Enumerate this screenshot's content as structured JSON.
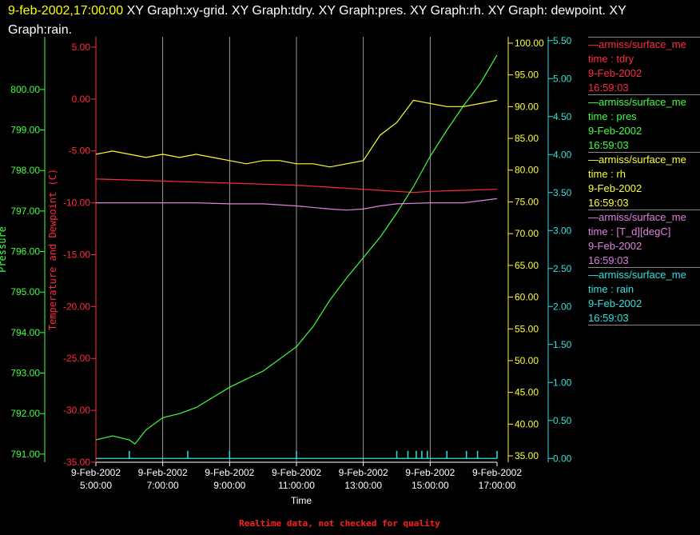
{
  "header": {
    "timestamp": "9-feb-2002,17:00:00",
    "graphs": " XY Graph:xy-grid.  XY Graph:tdry.  XY Graph:pres.  XY Graph:rh.  XY Graph: dewpoint.  XY Graph:rain."
  },
  "colors": {
    "tdry": "#ff2a40",
    "pres": "#40ff40",
    "rh": "#ffff30",
    "dewpoint": "#e080e0",
    "rain": "#30e0e0",
    "grid": "#e0e0e0",
    "axis_text": "#ffffff"
  },
  "chart_data": {
    "type": "line",
    "xlabel": "Time",
    "x_ticks": [
      {
        "date": "9-Feb-2002",
        "time": "5:00:00"
      },
      {
        "date": "9-Feb-2002",
        "time": "7:00:00"
      },
      {
        "date": "9-Feb-2002",
        "time": "9:00:00"
      },
      {
        "date": "9-Feb-2002",
        "time": "11:00:00"
      },
      {
        "date": "9-Feb-2002",
        "time": "13:00:00"
      },
      {
        "date": "9-Feb-2002",
        "time": "15:00:00"
      },
      {
        "date": "9-Feb-2002",
        "time": "17:00:00"
      }
    ],
    "xlim": [
      "9-Feb-2002 5:00:00",
      "9-Feb-2002 17:00:00"
    ],
    "grid": true,
    "axes": {
      "pressure": {
        "label": "Pressure",
        "ylim": [
          790.8,
          801.3
        ],
        "ticks": [
          "791.00",
          "792.00",
          "793.00",
          "794.00",
          "795.00",
          "796.00",
          "797.00",
          "798.00",
          "799.00",
          "800.00"
        ]
      },
      "temperature": {
        "label": "Temperature and Dewpoint (C)",
        "ylim": [
          -35,
          6
        ],
        "ticks": [
          "-35.00",
          "-30.00",
          "-25.00",
          "-20.00",
          "-15.00",
          "-10.00",
          "-5.00",
          "0.00",
          "5.00"
        ]
      },
      "rh": {
        "label": "",
        "ylim": [
          34,
          101
        ],
        "ticks": [
          "35.00",
          "40.00",
          "45.00",
          "50.00",
          "55.00",
          "60.00",
          "65.00",
          "70.00",
          "75.00",
          "80.00",
          "85.00",
          "90.00",
          "95.00",
          "100.00"
        ]
      },
      "rain": {
        "label": "",
        "ylim": [
          -0.05,
          5.55
        ],
        "ticks": [
          "0.00",
          "0.50",
          "1.00",
          "1.50",
          "2.00",
          "2.50",
          "3.00",
          "3.50",
          "4.00",
          "4.50",
          "5.00",
          "5.50"
        ]
      }
    },
    "series": [
      {
        "name": "tdry",
        "axis": "temperature",
        "x": [
          "05:00",
          "06:00",
          "07:00",
          "08:00",
          "09:00",
          "10:00",
          "11:00",
          "12:00",
          "13:00",
          "13:30",
          "14:00",
          "14:30",
          "15:00",
          "16:00",
          "17:00"
        ],
        "y": [
          -7.7,
          -7.8,
          -7.9,
          -8.0,
          -8.1,
          -8.2,
          -8.3,
          -8.5,
          -8.7,
          -8.8,
          -8.9,
          -9.0,
          -8.9,
          -8.8,
          -8.7
        ]
      },
      {
        "name": "pres",
        "axis": "pressure",
        "x": [
          "05:00",
          "05:30",
          "06:00",
          "06:10",
          "06:30",
          "07:00",
          "07:30",
          "08:00",
          "08:30",
          "09:00",
          "09:30",
          "10:00",
          "10:30",
          "11:00",
          "11:30",
          "12:00",
          "12:30",
          "13:00",
          "13:30",
          "14:00",
          "14:30",
          "15:00",
          "15:30",
          "16:00",
          "16:30",
          "17:00"
        ],
        "y": [
          791.35,
          791.45,
          791.35,
          791.25,
          791.6,
          791.9,
          792.0,
          792.15,
          792.4,
          792.65,
          792.85,
          793.05,
          793.35,
          793.65,
          794.15,
          794.8,
          795.35,
          795.85,
          796.35,
          796.95,
          797.6,
          798.35,
          799.0,
          799.6,
          800.15,
          800.85
        ]
      },
      {
        "name": "rh",
        "axis": "rh",
        "x": [
          "05:00",
          "05:30",
          "06:00",
          "06:30",
          "07:00",
          "07:30",
          "08:00",
          "08:30",
          "09:00",
          "09:30",
          "10:00",
          "10:30",
          "11:00",
          "11:30",
          "12:00",
          "12:30",
          "13:00",
          "13:30",
          "14:00",
          "14:30",
          "15:00",
          "15:30",
          "16:00",
          "16:30",
          "17:00"
        ],
        "y": [
          82.5,
          83.0,
          82.5,
          82.0,
          82.5,
          82.0,
          82.5,
          82.0,
          81.5,
          81.0,
          81.5,
          81.5,
          81.0,
          81.0,
          80.5,
          81.0,
          81.5,
          85.5,
          87.5,
          91.0,
          90.5,
          90.0,
          90.0,
          90.5,
          91.0
        ]
      },
      {
        "name": "T_d",
        "axis": "temperature",
        "x": [
          "05:00",
          "06:00",
          "07:00",
          "08:00",
          "09:00",
          "10:00",
          "11:00",
          "12:00",
          "12:30",
          "13:00",
          "13:30",
          "14:00",
          "15:00",
          "16:00",
          "17:00"
        ],
        "y": [
          -10.0,
          -10.0,
          -10.0,
          -10.0,
          -10.1,
          -10.1,
          -10.3,
          -10.6,
          -10.7,
          -10.6,
          -10.3,
          -10.1,
          -10.0,
          -10.0,
          -9.6
        ]
      },
      {
        "name": "rain",
        "axis": "rain",
        "x": [
          "06:00",
          "07:45",
          "09:00",
          "11:00",
          "14:00",
          "14:20",
          "14:35",
          "14:45",
          "14:55",
          "15:30",
          "16:05",
          "16:25",
          "17:00"
        ],
        "y": [
          0.1,
          0.1,
          0.1,
          0.1,
          0.1,
          0.1,
          0.1,
          0.1,
          0.1,
          0.1,
          0.1,
          0.1,
          0.1
        ]
      }
    ]
  },
  "legend": [
    {
      "series": "tdry",
      "source": "—armiss/surface_me",
      "label": "time : tdry",
      "date": "9-Feb-2002",
      "time": "16:59:03"
    },
    {
      "series": "pres",
      "source": "—armiss/surface_me",
      "label": "time : pres",
      "date": "9-Feb-2002",
      "time": "16:59:03"
    },
    {
      "series": "rh",
      "source": "—armiss/surface_me",
      "label": "time : rh",
      "date": "9-Feb-2002",
      "time": "16:59:03"
    },
    {
      "series": "T_d",
      "source": "—armiss/surface_me",
      "label": "time : [T_d][degC]",
      "date": "9-Feb-2002",
      "time": "16:59:03"
    },
    {
      "series": "rain",
      "source": "—armiss/surface_me",
      "label": "time : rain",
      "date": "9-Feb-2002",
      "time": "16:59:03"
    }
  ],
  "notice": "Realtime data, not checked for quality"
}
